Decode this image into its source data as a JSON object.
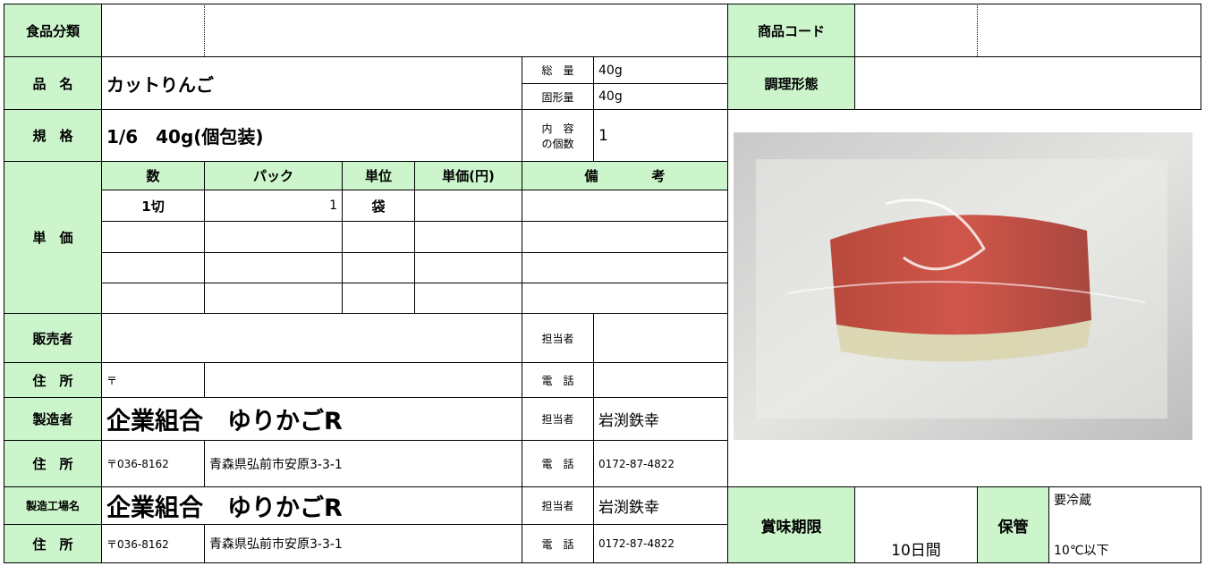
{
  "header": {
    "category_label": "食品分類",
    "product_code_label": "商品コード"
  },
  "product": {
    "name_label": "品　名",
    "name": "カットりんご",
    "total_label": "総　量",
    "total": "40g",
    "solid_label": "固形量",
    "solid": "40g",
    "cooking_form_label": "調理形態",
    "spec_label": "規　格",
    "spec": "1/6　40g(個包装)",
    "count_label": [
      "内　容",
      "の個数"
    ],
    "count": 1
  },
  "unit_price": {
    "label": "単　価",
    "columns": [
      "数",
      "パック",
      "単位",
      "単価(円)",
      "備　　　　考"
    ],
    "rows": [
      [
        "1切",
        1,
        "袋"
      ]
    ]
  },
  "seller": {
    "label": "販売者",
    "contact_label": "担当者",
    "address_label": "住　所",
    "postal": "〒",
    "phone_label": "電　話"
  },
  "manufacturer": {
    "label": "製造者",
    "name": "企業組合　ゆりかごR",
    "contact_label": "担当者",
    "contact": "岩渕鉄幸",
    "address_label": "住　所",
    "postal": "〒036-8162",
    "address": "青森県弘前市安原3-3-1",
    "phone_label": "電　話",
    "phone": "0172-87-4822"
  },
  "factory": {
    "label": "製造工場名",
    "name": "企業組合　ゆりかごR",
    "contact_label": "担当者",
    "contact": "岩渕鉄幸",
    "address_label": "住　所",
    "postal": "〒036-8162",
    "address": "青森県弘前市安原3-3-1",
    "phone_label": "電　話",
    "phone": "0172-87-4822"
  },
  "shelf_life": {
    "label": "賞味期限",
    "value": "10日間",
    "storage_label": "保管",
    "storage": [
      "要冷蔵",
      "10℃以下"
    ]
  }
}
